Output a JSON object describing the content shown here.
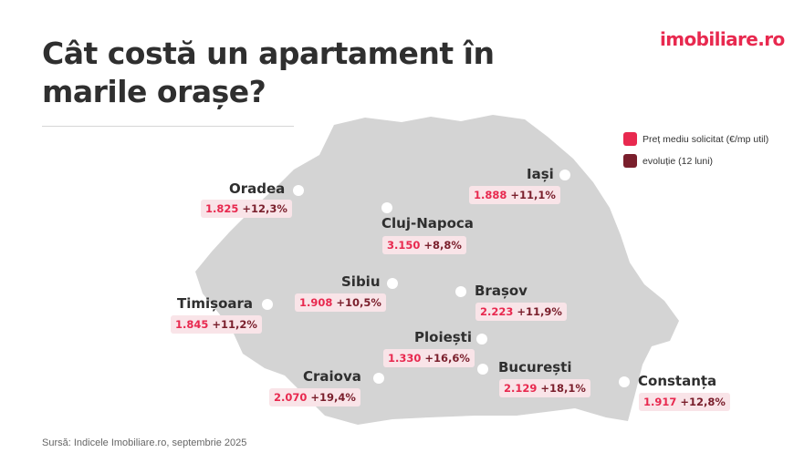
{
  "title_line1": "Cât costă un apartament în",
  "title_line2": "marile orașe?",
  "logo": "imobiliare.ro",
  "legend": {
    "price_label": "Preț mediu solicitat (€/mp util)",
    "price_color": "#e8294f",
    "evolution_label": "evoluție (12 luni)",
    "evolution_color": "#7a1f2c"
  },
  "map": {
    "region": "Romania",
    "fill_color": "#d4d4d4"
  },
  "cities": [
    {
      "name": "Oradea",
      "price": "1.825",
      "evolution": "+12,3%"
    },
    {
      "name": "Iași",
      "price": "1.888",
      "evolution": "+11,1%"
    },
    {
      "name": "Cluj-Napoca",
      "price": "3.150",
      "evolution": "+8,8%"
    },
    {
      "name": "Sibiu",
      "price": "1.908",
      "evolution": "+10,5%"
    },
    {
      "name": "Brașov",
      "price": "2.223",
      "evolution": "+11,9%"
    },
    {
      "name": "Timișoara",
      "price": "1.845",
      "evolution": "+11,2%"
    },
    {
      "name": "Ploiești",
      "price": "1.330",
      "evolution": "+16,6%"
    },
    {
      "name": "București",
      "price": "2.129",
      "evolution": "+18,1%"
    },
    {
      "name": "Craiova",
      "price": "2.070",
      "evolution": "+19,4%"
    },
    {
      "name": "Constanța",
      "price": "1.917",
      "evolution": "+12,8%"
    }
  ],
  "source": "Sursă: Indicele Imobiliare.ro, septembrie 2025"
}
